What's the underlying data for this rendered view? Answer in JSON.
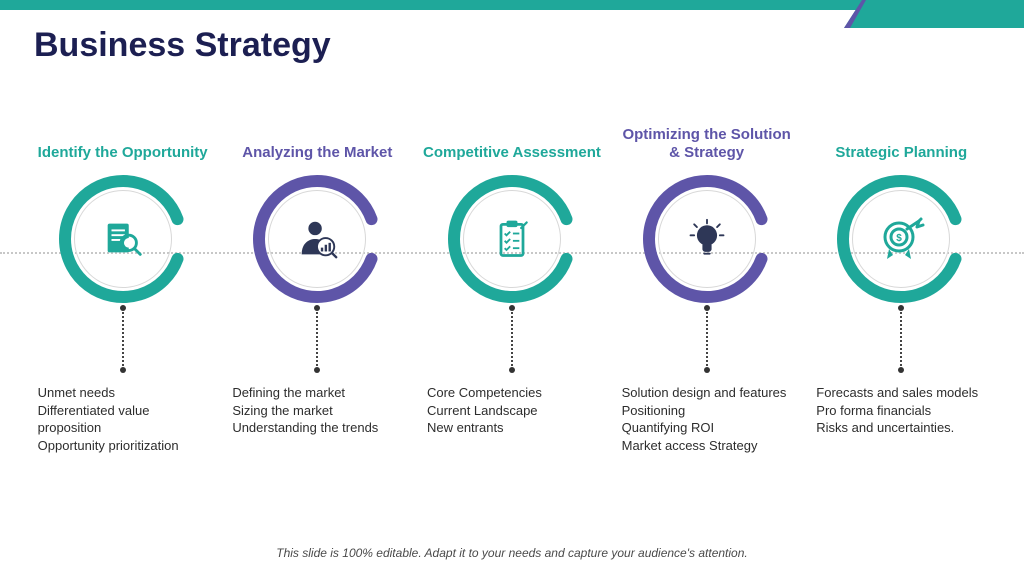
{
  "title": "Business Strategy",
  "footer": "This slide is 100% editable. Adapt it to your needs and capture your audience's attention.",
  "colors": {
    "teal": "#1fa89a",
    "purple": "#5e55a8",
    "icon_teal": "#1fa89a",
    "icon_dark": "#2e3757",
    "title_color": "#1c1f52"
  },
  "ring": {
    "stroke_width": 12,
    "radius": 58,
    "gap_start_deg": 20,
    "gap_end_deg": -20
  },
  "steps": [
    {
      "title": "Identify the Opportunity",
      "title_color": "#1fa89a",
      "ring_color": "#1fa89a",
      "icon": "magnify-doc",
      "icon_color": "#1fa89a",
      "bullets": "Unmet needs\nDifferentiated value proposition\nOpportunity prioritization"
    },
    {
      "title": "Analyzing the Market",
      "title_color": "#5e55a8",
      "ring_color": "#5e55a8",
      "icon": "person-analytics",
      "icon_color": "#2e3757",
      "bullets": "Defining the market\nSizing the market\nUnderstanding the trends"
    },
    {
      "title": "Competitive Assessment",
      "title_color": "#1fa89a",
      "ring_color": "#1fa89a",
      "icon": "clipboard-check",
      "icon_color": "#1fa89a",
      "bullets": "Core Competencies\nCurrent Landscape\nNew entrants"
    },
    {
      "title": "Optimizing the Solution & Strategy",
      "title_color": "#5e55a8",
      "ring_color": "#5e55a8",
      "icon": "lightbulb",
      "icon_color": "#2e3757",
      "bullets": "Solution design and features\nPositioning\nQuantifying ROI\nMarket access Strategy"
    },
    {
      "title": "Strategic Planning",
      "title_color": "#1fa89a",
      "ring_color": "#1fa89a",
      "icon": "target-dollar",
      "icon_color": "#1fa89a",
      "bullets": "Forecasts and sales models\nPro forma financials\nRisks and uncertainties."
    }
  ]
}
